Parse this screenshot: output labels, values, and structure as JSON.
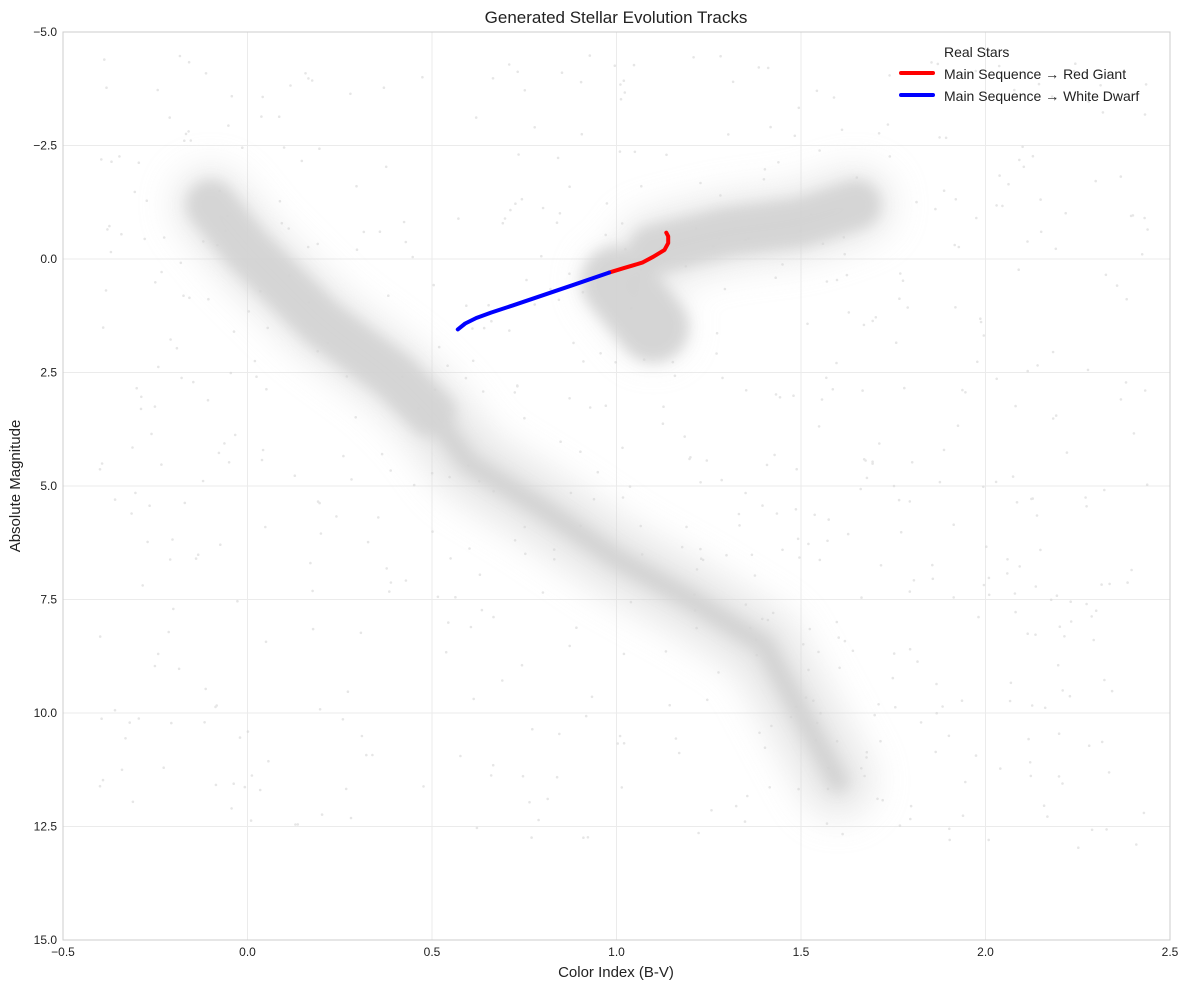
{
  "chart_data": {
    "type": "scatter",
    "title": "Generated Stellar Evolution Tracks",
    "xlabel": "Color Index (B-V)",
    "ylabel": "Absolute Magnitude",
    "xlim": [
      -0.5,
      2.5
    ],
    "ylim": [
      -5.0,
      15.0
    ],
    "y_inverted": true,
    "grid": true,
    "legend_position": "top-right",
    "x_ticks": [
      "−0.5",
      "0.0",
      "0.5",
      "1.0",
      "1.5",
      "2.0",
      "2.5"
    ],
    "x_tick_values": [
      -0.5,
      0.0,
      0.5,
      1.0,
      1.5,
      2.0,
      2.5
    ],
    "y_ticks": [
      "−5.0",
      "−2.5",
      "0.0",
      "2.5",
      "5.0",
      "7.5",
      "10.0",
      "12.5",
      "15.0"
    ],
    "y_tick_values": [
      -5.0,
      -2.5,
      0.0,
      2.5,
      5.0,
      7.5,
      10.0,
      12.5,
      15.0
    ],
    "series": [
      {
        "name": "Real Stars",
        "kind": "scatter-density",
        "color": "#d3d3d3",
        "regions": [
          {
            "label": "main-sequence-upper",
            "points": [
              [
                -0.1,
                -1.2
              ],
              [
                0.0,
                -0.2
              ],
              [
                0.1,
                0.6
              ],
              [
                0.2,
                1.4
              ],
              [
                0.3,
                2.0
              ],
              [
                0.4,
                2.6
              ],
              [
                0.5,
                3.4
              ]
            ]
          },
          {
            "label": "main-sequence-lower",
            "points": [
              [
                0.5,
                3.4
              ],
              [
                0.6,
                4.5
              ],
              [
                0.8,
                5.5
              ],
              [
                1.0,
                6.6
              ],
              [
                1.2,
                7.5
              ],
              [
                1.4,
                8.5
              ],
              [
                1.5,
                10.0
              ],
              [
                1.6,
                11.5
              ]
            ]
          },
          {
            "label": "red-clump",
            "points": [
              [
                1.05,
                1.0
              ],
              [
                1.0,
                0.5
              ],
              [
                1.1,
                1.5
              ]
            ]
          },
          {
            "label": "giant-branch",
            "points": [
              [
                1.1,
                -0.2
              ],
              [
                1.3,
                -0.6
              ],
              [
                1.5,
                -0.8
              ],
              [
                1.65,
                -1.2
              ]
            ]
          }
        ]
      },
      {
        "name": "Main Sequence → Red Giant",
        "kind": "line",
        "color": "#ff0000",
        "x": [
          0.98,
          1.02,
          1.07,
          1.1,
          1.13,
          1.14,
          1.14,
          1.135
        ],
        "y": [
          0.3,
          0.2,
          0.08,
          -0.05,
          -0.2,
          -0.35,
          -0.5,
          -0.58
        ]
      },
      {
        "name": "Main Sequence → White Dwarf",
        "kind": "line",
        "color": "#0000ff",
        "x": [
          0.57,
          0.59,
          0.62,
          0.66,
          0.72,
          0.8,
          0.88,
          0.98
        ],
        "y": [
          1.55,
          1.42,
          1.3,
          1.18,
          1.02,
          0.8,
          0.58,
          0.3
        ]
      }
    ]
  }
}
